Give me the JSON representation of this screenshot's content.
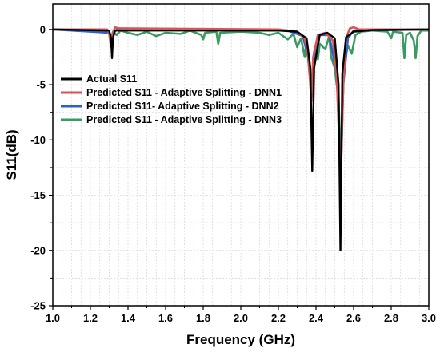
{
  "chart_data": {
    "type": "line",
    "xlabel": "Frequency (GHz)",
    "ylabel": "S11(dB)",
    "xlim": [
      1.0,
      3.0
    ],
    "ylim": [
      -25,
      2.3
    ],
    "xticks": [
      1.0,
      1.2,
      1.4,
      1.6,
      1.8,
      2.0,
      2.2,
      2.4,
      2.6,
      2.8,
      3.0
    ],
    "xtick_labels": [
      "1.0",
      "1.2",
      "1.4",
      "1.6",
      "1.8",
      "2.0",
      "2.2",
      "2.4",
      "2.6",
      "2.8",
      "3.0"
    ],
    "yticks": [
      0,
      -5,
      -10,
      -15,
      -20,
      -25
    ],
    "ytick_labels": [
      "0",
      "-5",
      "-10",
      "-15",
      "-20",
      "-25"
    ],
    "grid": true,
    "legend_position": "upper-left",
    "series": [
      {
        "name": "Actual S11",
        "color": "#000000",
        "points": [
          [
            1.0,
            0
          ],
          [
            1.3,
            -0.1
          ],
          [
            1.31,
            -0.8
          ],
          [
            1.315,
            -2.6
          ],
          [
            1.32,
            -0.8
          ],
          [
            1.33,
            -0.1
          ],
          [
            2.2,
            -0.1
          ],
          [
            2.3,
            -0.2
          ],
          [
            2.35,
            -0.8
          ],
          [
            2.37,
            -3.5
          ],
          [
            2.38,
            -12.8
          ],
          [
            2.39,
            -3.5
          ],
          [
            2.42,
            -0.5
          ],
          [
            2.46,
            -0.3
          ],
          [
            2.5,
            -0.8
          ],
          [
            2.52,
            -5
          ],
          [
            2.53,
            -20
          ],
          [
            2.535,
            -12
          ],
          [
            2.54,
            -4
          ],
          [
            2.56,
            -0.7
          ],
          [
            2.6,
            -0.2
          ],
          [
            2.7,
            -0.05
          ],
          [
            3.0,
            0
          ]
        ]
      },
      {
        "name": "Predicted S11 - Adaptive Splitting - DNN1",
        "color": "#d9534f",
        "points": [
          [
            1.0,
            0
          ],
          [
            1.29,
            0
          ],
          [
            1.3,
            -0.4
          ],
          [
            1.31,
            -1.5
          ],
          [
            1.32,
            -0.4
          ],
          [
            1.33,
            0.2
          ],
          [
            1.35,
            0.1
          ],
          [
            2.2,
            0
          ],
          [
            2.3,
            -0.2
          ],
          [
            2.34,
            -0.8
          ],
          [
            2.36,
            -2.5
          ],
          [
            2.375,
            -6.5
          ],
          [
            2.385,
            -2.5
          ],
          [
            2.41,
            -0.5
          ],
          [
            2.45,
            -0.3
          ],
          [
            2.49,
            -1
          ],
          [
            2.51,
            -4
          ],
          [
            2.525,
            -11
          ],
          [
            2.535,
            -11.6
          ],
          [
            2.545,
            -5
          ],
          [
            2.56,
            -0.8
          ],
          [
            2.58,
            0.1
          ],
          [
            2.6,
            0.2
          ],
          [
            2.63,
            0
          ],
          [
            3.0,
            0
          ]
        ]
      },
      {
        "name": "Predicted S11- Adaptive Splitting - DNN2",
        "color": "#2f5fc8",
        "points": [
          [
            1.0,
            0
          ],
          [
            1.3,
            -0.3
          ],
          [
            1.31,
            -1.6
          ],
          [
            1.32,
            -0.4
          ],
          [
            1.34,
            0
          ],
          [
            2.25,
            -0.1
          ],
          [
            2.33,
            -0.6
          ],
          [
            2.365,
            -3
          ],
          [
            2.38,
            -6
          ],
          [
            2.39,
            -2.5
          ],
          [
            2.41,
            -0.5
          ],
          [
            2.47,
            -0.5
          ],
          [
            2.51,
            -4
          ],
          [
            2.525,
            -10.5
          ],
          [
            2.535,
            -11.3
          ],
          [
            2.545,
            -5
          ],
          [
            2.57,
            -0.8
          ],
          [
            2.6,
            -0.1
          ],
          [
            3.0,
            0
          ]
        ]
      },
      {
        "name": "Predicted S11 - Adaptive Splitting - DNN3",
        "color": "#3a9a5f",
        "points": [
          [
            1.0,
            0
          ],
          [
            1.25,
            0
          ],
          [
            1.3,
            -0.2
          ],
          [
            1.31,
            -0.9
          ],
          [
            1.32,
            -0.2
          ],
          [
            1.34,
            -0.5
          ],
          [
            1.36,
            -0.1
          ],
          [
            1.4,
            -0.3
          ],
          [
            1.45,
            -0.5
          ],
          [
            1.5,
            -0.2
          ],
          [
            1.55,
            -0.6
          ],
          [
            1.6,
            -0.3
          ],
          [
            1.68,
            -0.4
          ],
          [
            1.73,
            -0.1
          ],
          [
            1.79,
            -0.5
          ],
          [
            1.8,
            -0.9
          ],
          [
            1.81,
            -0.3
          ],
          [
            1.87,
            -0.2
          ],
          [
            1.88,
            -1.3
          ],
          [
            1.89,
            -0.3
          ],
          [
            2.0,
            -0.2
          ],
          [
            2.1,
            -0.3
          ],
          [
            2.15,
            -0.5
          ],
          [
            2.2,
            -0.3
          ],
          [
            2.25,
            -0.9
          ],
          [
            2.28,
            -0.4
          ],
          [
            2.3,
            -1.6
          ],
          [
            2.32,
            -0.8
          ],
          [
            2.34,
            -2.5
          ],
          [
            2.35,
            -1
          ],
          [
            2.365,
            -4
          ],
          [
            2.38,
            -5.5
          ],
          [
            2.39,
            -2
          ],
          [
            2.41,
            -2.7
          ],
          [
            2.42,
            -1.3
          ],
          [
            2.45,
            -1.8
          ],
          [
            2.47,
            -0.6
          ],
          [
            2.48,
            -2.5
          ],
          [
            2.5,
            -3.5
          ],
          [
            2.51,
            -5
          ],
          [
            2.52,
            -6
          ],
          [
            2.53,
            -11.7
          ],
          [
            2.54,
            -7.5
          ],
          [
            2.55,
            -3
          ],
          [
            2.57,
            -1.5
          ],
          [
            2.59,
            -2.2
          ],
          [
            2.61,
            -0.5
          ],
          [
            2.64,
            -0.2
          ],
          [
            2.7,
            -0.1
          ],
          [
            2.78,
            -0.2
          ],
          [
            2.8,
            -0.8
          ],
          [
            2.81,
            -0.2
          ],
          [
            2.86,
            -0.3
          ],
          [
            2.87,
            -2.6
          ],
          [
            2.88,
            -0.5
          ],
          [
            2.9,
            -0.3
          ],
          [
            2.92,
            -1
          ],
          [
            2.93,
            -2.6
          ],
          [
            2.94,
            -0.6
          ],
          [
            2.96,
            -0.1
          ],
          [
            3.0,
            -0.1
          ]
        ]
      }
    ]
  }
}
